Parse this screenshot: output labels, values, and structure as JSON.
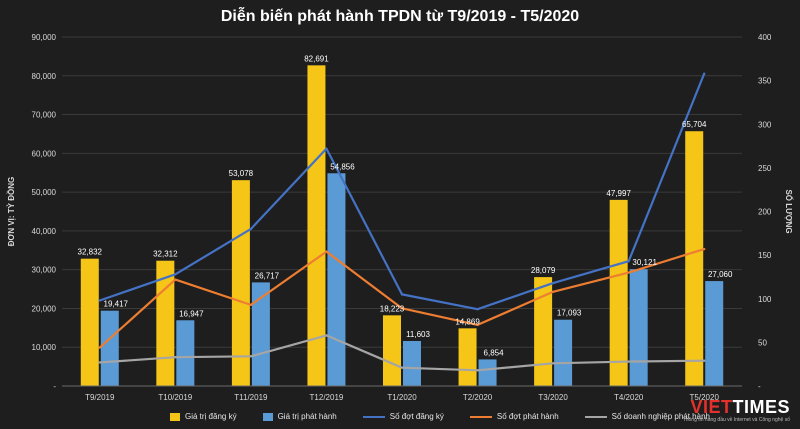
{
  "chart_data": {
    "type": "bar",
    "title": "Diễn biến phát hành TPDN từ T9/2019 - T5/2020",
    "categories": [
      "T9/2019",
      "T10/2019",
      "T11/2019",
      "T12/2019",
      "T1/2020",
      "T2/2020",
      "T3/2020",
      "T4/2020",
      "T5/2020"
    ],
    "ylabel_left": "ĐƠN VỊ: TỶ ĐỒNG",
    "ylabel_right": "SỐ LƯỢNG",
    "ylim_left": [
      0,
      90000
    ],
    "ylim_right": [
      0,
      400
    ],
    "yticks_left": [
      "-",
      "10,000",
      "20,000",
      "30,000",
      "40,000",
      "50,000",
      "60,000",
      "70,000",
      "80,000",
      "90,000"
    ],
    "yticks_right": [
      "-",
      "50",
      "100",
      "150",
      "200",
      "250",
      "300",
      "350",
      "400"
    ],
    "bar_series": [
      {
        "name": "Giá trị đăng ký",
        "color": "#f5c518",
        "values": [
          32832,
          32312,
          53078,
          82691,
          18223,
          14869,
          28079,
          47997,
          65704
        ],
        "labels": [
          "32,832",
          "32,312",
          "53,078",
          "82,691",
          "18,223",
          "14,869",
          "28,079",
          "47,997",
          "65,704"
        ]
      },
      {
        "name": "Giá trị phát hành",
        "color": "#5b9bd5",
        "values": [
          19417,
          16947,
          26717,
          54856,
          11603,
          6854,
          17093,
          30121,
          27060
        ],
        "labels": [
          "19,417",
          "16,947",
          "26,717",
          "54,856",
          "11,603",
          "6,854",
          "17,093",
          "30,121",
          "27,060"
        ]
      }
    ],
    "line_series": [
      {
        "name": "Số đợt đăng ký",
        "color": "#4472c4",
        "values": [
          98,
          128,
          180,
          272,
          105,
          88,
          118,
          143,
          358
        ]
      },
      {
        "name": "Số đợt phát hành",
        "color": "#ed7d31",
        "values": [
          44,
          122,
          93,
          154,
          89,
          70,
          108,
          130,
          157
        ]
      },
      {
        "name": "Số doanh nghiệp phát hành",
        "color": "#a5a5a5",
        "values": [
          27,
          33,
          34,
          58,
          21,
          18,
          26,
          28,
          29
        ]
      }
    ]
  },
  "brand": {
    "viet": "VIET",
    "times": "TIMES",
    "tagline": "Thông tin hàng đầu về Internet và Công nghệ số"
  }
}
